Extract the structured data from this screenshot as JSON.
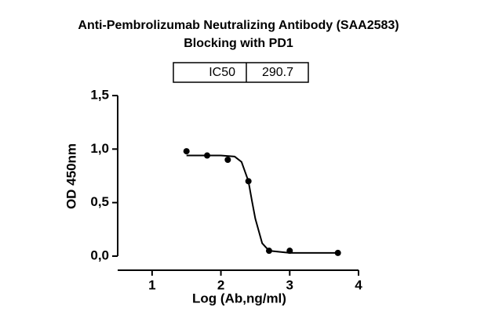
{
  "chart_data": {
    "type": "scatter",
    "title": [
      "Anti-Pembrolizumab Neutralizing Antibody (SAA2583)",
      "Blocking with PD1"
    ],
    "ic50_label": "IC50",
    "ic50": 290.7,
    "x_label": "Log (Ab,ng/ml)",
    "y_label": "OD 450nm",
    "points": {
      "x": [
        1.5,
        1.8,
        2.1,
        2.4,
        2.7,
        3.0,
        3.7
      ],
      "y": [
        0.98,
        0.94,
        0.9,
        0.7,
        0.05,
        0.05,
        0.03
      ]
    },
    "fit": {
      "x": [
        1.5,
        2.0,
        2.2,
        2.3,
        2.4,
        2.45,
        2.5,
        2.6,
        2.7,
        3.0,
        3.7
      ],
      "y": [
        0.94,
        0.94,
        0.93,
        0.88,
        0.7,
        0.52,
        0.35,
        0.12,
        0.05,
        0.03,
        0.03
      ]
    },
    "color": "#000000",
    "xlim": [
      0.5,
      4
    ],
    "xticks": [
      1,
      2,
      3,
      4
    ],
    "ylim": [
      0,
      1.5
    ],
    "yticks": [
      {
        "value": 0,
        "label": "0,0"
      },
      {
        "value": 0.5,
        "label": "0,5"
      },
      {
        "value": 1,
        "label": "1,0"
      },
      {
        "value": 1.5,
        "label": "1,5"
      }
    ]
  }
}
